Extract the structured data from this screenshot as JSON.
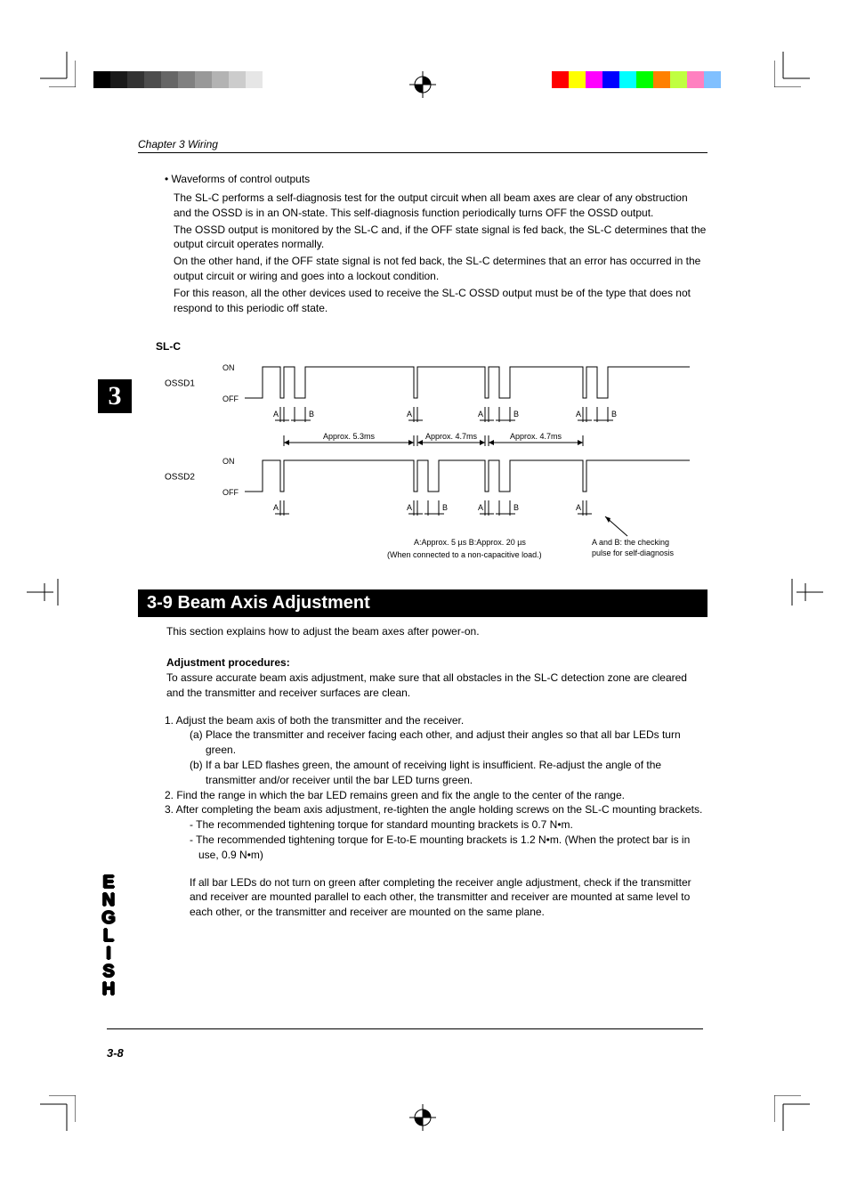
{
  "cropBars": {
    "grayscale": [
      "#000000",
      "#1a1a1a",
      "#333333",
      "#4d4d4d",
      "#666666",
      "#808080",
      "#999999",
      "#b3b3b3",
      "#cccccc",
      "#e6e6e6"
    ],
    "color": [
      "#ff0000",
      "#ffff00",
      "#ff00ff",
      "#0000ff",
      "#00ffff",
      "#00ff00",
      "#ff8000",
      "#c0ff40",
      "#ff80c0",
      "#80c0ff"
    ]
  },
  "chapterHeader": "Chapter 3  Wiring",
  "chapterTab": "3",
  "langTab": "ENGLISH",
  "waveformsBullet": "Waveforms of control outputs",
  "bodyParas": [
    "The SL-C performs a self-diagnosis test for the output circuit when all beam axes are clear of any obstruction and the OSSD is in an ON-state.  This self-diagnosis function periodically turns OFF the OSSD output.",
    "The OSSD output is monitored by the SL-C and, if the OFF state signal is fed back, the SL-C determines that the output circuit operates normally.",
    "On the other hand, if the OFF state signal is not fed back, the SL-C determines that an error has occurred in the output circuit or wiring and goes into a lockout condition.",
    "For this reason, all the other devices used to receive the SL-C OSSD output must be of the type that does not respond to this periodic off state."
  ],
  "slcLabel": "SL-C",
  "diagram": {
    "ossd1": "OSSD1",
    "ossd2": "OSSD2",
    "on": "ON",
    "off": "OFF",
    "timings": [
      "Approx. 5.3ms",
      "Approx. 4.7ms",
      "Approx. 4.7ms"
    ],
    "noteAB": "A:Approx. 5 µs    B:Approx. 20 µs",
    "noteLoad": "(When connected to a non-capacitive load.)",
    "noteCheck1": "A and B: the checking",
    "noteCheck2": "pulse for self-diagnosis",
    "A": "A",
    "B": "B",
    "font_small": 9,
    "font_label": 10
  },
  "sectionTitle": "3-9 Beam Axis Adjustment",
  "sectionIntro": "This section explains how to adjust the beam axes after power-on.",
  "adjLabel": "Adjustment procedures:",
  "adjIntro": "To assure accurate beam axis adjustment, make sure that all obstacles in the SL-C detection zone are cleared and the transmitter and receiver surfaces are clean.",
  "procedures": {
    "p1": "1. Adjust the beam axis of both the transmitter and the receiver.",
    "p1a": "(a) Place the transmitter and receiver facing each other, and adjust their angles so that all bar LEDs turn green.",
    "p1b": "(b) If a bar LED flashes green, the amount of receiving light is insufficient.  Re-adjust the angle of the transmitter and/or receiver until the bar LED turns green.",
    "p2": "2. Find the range in which the bar LED remains green and fix the angle to the center of the range.",
    "p3": "3. After completing the beam axis adjustment, re-tighten the angle holding screws on the SL-C mounting brackets.",
    "p3a": "-  The recommended tightening torque for standard mounting brackets is 0.7 N•m.",
    "p3b": "-  The recommended tightening torque for E-to-E mounting brackets is 1.2 N•m. (When the protect bar is in use, 0.9 N•m)",
    "p4": "If all bar LEDs do not turn on green after completing the receiver angle adjustment, check if the transmitter and receiver are mounted parallel to each other, the transmitter and receiver are mounted at same level to each other, or the transmitter and receiver are mounted on the same plane."
  },
  "pageNum": "3-8"
}
